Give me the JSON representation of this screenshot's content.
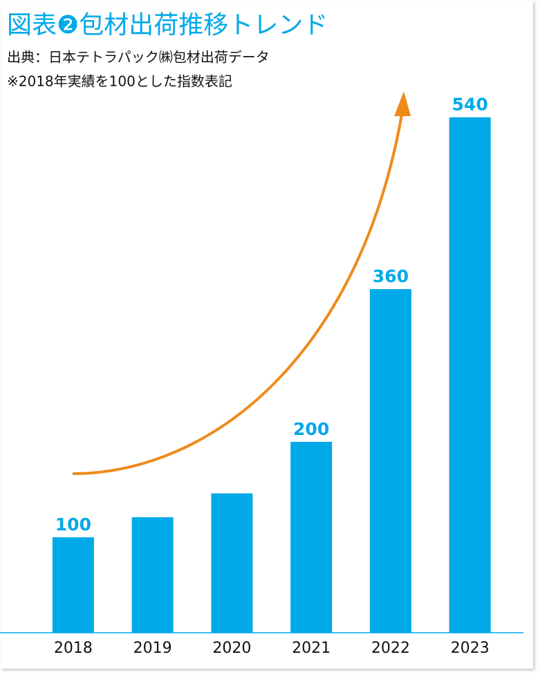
{
  "chart_data": {
    "type": "bar",
    "title": "図表❷包材出荷推移トレンド",
    "subtitle": [
      "出典：日本テトラパック㈱包材出荷データ",
      "※2018年実績を100とした指数表記"
    ],
    "categories": [
      "2018",
      "2019",
      "2020",
      "2021",
      "2022",
      "2023"
    ],
    "values": [
      100,
      121,
      146,
      200,
      360,
      540
    ],
    "value_labels": [
      "100",
      null,
      null,
      "200",
      "360",
      "540"
    ],
    "color": "#00a9e8",
    "ylim": [
      0,
      560
    ]
  }
}
